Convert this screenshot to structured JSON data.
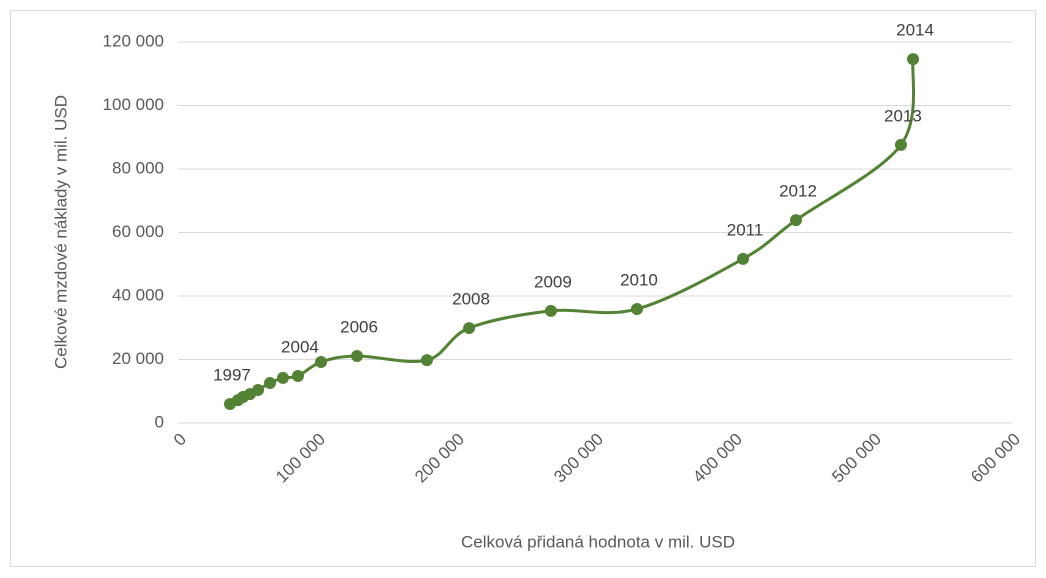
{
  "chart_data": {
    "type": "scatter",
    "x_label": "Celková přidaná hodnota v mil. USD",
    "y_label": "Celkové mzdové náklady v mil. USD",
    "series": [
      {
        "name": null,
        "color": "#548235",
        "x": [
          37400,
          43200,
          46800,
          51800,
          57600,
          66200,
          75500,
          86300,
          102900,
          128800,
          179100,
          209400,
          268300,
          330200,
          406500,
          444600,
          520100,
          528800
        ],
        "values": [
          6000,
          7200,
          8200,
          9100,
          10400,
          12600,
          14200,
          14800,
          19200,
          21100,
          19800,
          29900,
          35300,
          35900,
          51700,
          63900,
          87600,
          114600
        ],
        "point_labels": [
          1997,
          null,
          null,
          null,
          null,
          null,
          null,
          2004,
          null,
          2006,
          null,
          2008,
          2009,
          2010,
          2011,
          2012,
          2013,
          2014
        ]
      }
    ],
    "xlim": [
      0,
      600000
    ],
    "xticks": [
      0,
      {
        "value": 100000,
        "label": "100 000"
      },
      {
        "value": 200000,
        "label": "200 000"
      },
      {
        "value": 300000,
        "label": "300 000"
      },
      {
        "value": 400000,
        "label": "400 000"
      },
      {
        "value": 500000,
        "label": "500 000"
      },
      {
        "value": 600000,
        "label": "600 000"
      }
    ],
    "ylim": [
      0,
      120000
    ],
    "yticks": [
      0,
      {
        "value": 20000,
        "label": "20 000"
      },
      {
        "value": 40000,
        "label": "40 000"
      },
      {
        "value": 60000,
        "label": "60 000"
      },
      {
        "value": 80000,
        "label": "80 000"
      },
      {
        "value": 100000,
        "label": "100 000"
      },
      {
        "value": 120000,
        "label": "120 000"
      }
    ],
    "grid": true,
    "smooth": true
  }
}
